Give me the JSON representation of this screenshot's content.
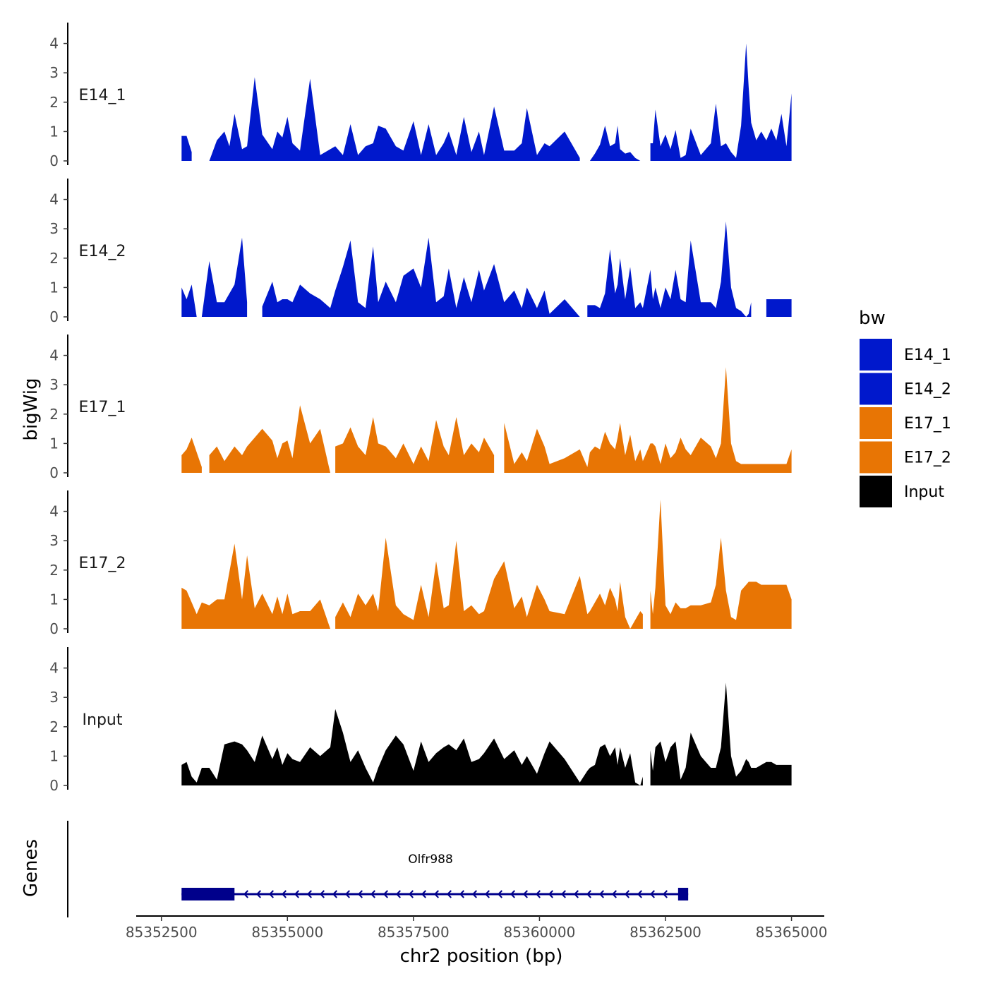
{
  "chart_data": {
    "type": "area",
    "title": "",
    "xlabel": "chr2 position (bp)",
    "ylabel": "bigWig",
    "genes_label": "Genes",
    "xlim": [
      85352000,
      85365650
    ],
    "x_ticks": [
      85352500,
      85355000,
      85357500,
      85360000,
      85362500,
      85365000
    ],
    "x_tick_labels": [
      "85352500",
      "85355000",
      "85357500",
      "85360000",
      "85362500",
      "85365000"
    ],
    "ylim": [
      0,
      4.5
    ],
    "y_ticks": [
      0,
      1,
      2,
      3,
      4
    ],
    "y_tick_labels": [
      "0",
      "1",
      "2",
      "3",
      "4"
    ],
    "legend": {
      "title": "bw",
      "position": "right",
      "entries": [
        {
          "label": "E14_1",
          "color": "#0018CC"
        },
        {
          "label": "E14_2",
          "color": "#0018CC"
        },
        {
          "label": "E17_1",
          "color": "#E87504"
        },
        {
          "label": "E17_2",
          "color": "#E87504"
        },
        {
          "label": "Input",
          "color": "#000000"
        }
      ]
    },
    "series": [
      {
        "name": "E14_1",
        "color": "#0018CC",
        "x": [
          85352900,
          85353000,
          85353100,
          85353250,
          85353450,
          85353600,
          85353750,
          85353850,
          85353950,
          85354100,
          85354200,
          85354350,
          85354500,
          85354700,
          85354800,
          85354900,
          85355000,
          85355100,
          85355250,
          85355450,
          85355650,
          85355850,
          85355950,
          85356100,
          85356250,
          85356400,
          85356550,
          85356700,
          85356800,
          85356950,
          85357150,
          85357300,
          85357500,
          85357650,
          85357800,
          85357950,
          85358100,
          85358200,
          85358350,
          85358500,
          85358650,
          85358800,
          85358900,
          85359100,
          85359300,
          85359500,
          85359650,
          85359750,
          85359950,
          85360100,
          85360200,
          85360500,
          85360800,
          85360950,
          85361000,
          85361100,
          85361200,
          85361300,
          85361400,
          85361500,
          85361550,
          85361600,
          85361700,
          85361800,
          85361900,
          85362000,
          85362050,
          85362200,
          85362250,
          85362300,
          85362400,
          85362500,
          85362600,
          85362700,
          85362800,
          85362900,
          85363000,
          85363200,
          85363400,
          85363500,
          85363600,
          85363700,
          85363800,
          85363900,
          85364000,
          85364100,
          85364150,
          85364200,
          85364300,
          85364400,
          85364500,
          85364600,
          85364700,
          85364800,
          85364900,
          85365000
        ],
        "values": [
          0.85,
          0.85,
          0.3,
          0,
          0,
          0.7,
          1.0,
          0.5,
          1.6,
          0.4,
          0.5,
          2.85,
          0.9,
          0.4,
          1.0,
          0.8,
          1.5,
          0.6,
          0.35,
          2.8,
          0.2,
          0.4,
          0.5,
          0.2,
          1.25,
          0.2,
          0.5,
          0.6,
          1.2,
          1.1,
          0.5,
          0.35,
          1.35,
          0.2,
          1.25,
          0.2,
          0.6,
          1.0,
          0.2,
          1.5,
          0.3,
          1.0,
          0.2,
          1.85,
          0.35,
          0.35,
          0.6,
          1.8,
          0.2,
          0.6,
          0.5,
          1.0,
          0.1,
          0,
          0,
          0.25,
          0.55,
          1.2,
          0.5,
          0.6,
          1.2,
          0.4,
          0.25,
          0.3,
          0.1,
          0,
          0,
          0.6,
          0.6,
          1.75,
          0.5,
          0.9,
          0.4,
          1.05,
          0.1,
          0.2,
          1.1,
          0.2,
          0.6,
          1.95,
          0.5,
          0.6,
          0.3,
          0.1,
          1.2,
          4.0,
          2.5,
          1.3,
          0.7,
          1.0,
          0.7,
          1.1,
          0.7,
          1.6,
          0.5,
          2.3
        ]
      },
      {
        "name": "E14_2",
        "color": "#0018CC",
        "x": [
          85352900,
          85353000,
          85353100,
          85353200,
          85353300,
          85353450,
          85353600,
          85353750,
          85353950,
          85354100,
          85354200,
          85354350,
          85354500,
          85354700,
          85354800,
          85354900,
          85355000,
          85355100,
          85355250,
          85355450,
          85355650,
          85355850,
          85355950,
          85356100,
          85356250,
          85356400,
          85356550,
          85356700,
          85356800,
          85356950,
          85357150,
          85357300,
          85357500,
          85357650,
          85357800,
          85357950,
          85358100,
          85358200,
          85358350,
          85358500,
          85358650,
          85358800,
          85358900,
          85359100,
          85359300,
          85359500,
          85359650,
          85359750,
          85359950,
          85360100,
          85360200,
          85360500,
          85360800,
          85360950,
          85361000,
          85361100,
          85361200,
          85361300,
          85361400,
          85361500,
          85361550,
          85361600,
          85361700,
          85361800,
          85361900,
          85362000,
          85362050,
          85362200,
          85362250,
          85362300,
          85362400,
          85362500,
          85362600,
          85362700,
          85362800,
          85362900,
          85363000,
          85363200,
          85363400,
          85363500,
          85363600,
          85363700,
          85363800,
          85363900,
          85364000,
          85364100,
          85364150,
          85364200,
          85364300,
          85364400,
          85364500,
          85364600,
          85364700,
          85364800,
          85364900,
          85365000
        ],
        "values": [
          1.0,
          0.6,
          1.1,
          0,
          0,
          1.9,
          0.5,
          0.5,
          1.1,
          2.7,
          0.5,
          0,
          0.35,
          1.2,
          0.5,
          0.6,
          0.6,
          0.5,
          1.1,
          0.8,
          0.6,
          0.3,
          0.9,
          1.7,
          2.6,
          0.5,
          0.3,
          2.4,
          0.5,
          1.2,
          0.5,
          1.4,
          1.65,
          1.0,
          2.7,
          0.5,
          0.7,
          1.65,
          0.3,
          1.35,
          0.5,
          1.6,
          0.9,
          1.8,
          0.5,
          0.9,
          0.3,
          1.0,
          0.3,
          0.9,
          0.1,
          0.6,
          0,
          0.4,
          0.4,
          0.4,
          0.3,
          0.8,
          2.3,
          0.8,
          1.1,
          2.0,
          0.6,
          1.7,
          0.3,
          0.5,
          0.3,
          1.6,
          0.6,
          1.0,
          0.3,
          1.0,
          0.6,
          1.6,
          0.6,
          0.5,
          2.6,
          0.5,
          0.5,
          0.3,
          1.2,
          3.25,
          1.0,
          0.3,
          0.2,
          0,
          0.1,
          0.5,
          0.6,
          0.6,
          0.6,
          0.6,
          0.6,
          0.6,
          0.6,
          0.6
        ]
      },
      {
        "name": "E17_1",
        "color": "#E87504",
        "x": [
          85352900,
          85353000,
          85353100,
          85353200,
          85353300,
          85353450,
          85353600,
          85353750,
          85353950,
          85354100,
          85354200,
          85354350,
          85354500,
          85354700,
          85354800,
          85354900,
          85355000,
          85355100,
          85355250,
          85355450,
          85355650,
          85355850,
          85355950,
          85356100,
          85356250,
          85356400,
          85356550,
          85356700,
          85356800,
          85356950,
          85357150,
          85357300,
          85357500,
          85357650,
          85357800,
          85357950,
          85358100,
          85358200,
          85358350,
          85358500,
          85358650,
          85358800,
          85358900,
          85359100,
          85359300,
          85359500,
          85359650,
          85359750,
          85359950,
          85360100,
          85360200,
          85360500,
          85360800,
          85360950,
          85361000,
          85361100,
          85361200,
          85361300,
          85361400,
          85361500,
          85361550,
          85361600,
          85361700,
          85361800,
          85361900,
          85362000,
          85362050,
          85362200,
          85362250,
          85362300,
          85362400,
          85362500,
          85362600,
          85362700,
          85362800,
          85362900,
          85363000,
          85363200,
          85363400,
          85363500,
          85363600,
          85363700,
          85363800,
          85363900,
          85364000,
          85364100,
          85364150,
          85364200,
          85364300,
          85364400,
          85364500,
          85364600,
          85364700,
          85364800,
          85364900,
          85365000
        ],
        "values": [
          0.6,
          0.8,
          1.2,
          0.7,
          0.2,
          0.6,
          0.9,
          0.4,
          0.9,
          0.6,
          0.9,
          1.2,
          1.5,
          1.1,
          0.5,
          1.0,
          1.1,
          0.5,
          2.3,
          1.0,
          1.5,
          0,
          0.9,
          1.0,
          1.55,
          0.9,
          0.6,
          1.9,
          1.0,
          0.9,
          0.5,
          1.0,
          0.3,
          0.9,
          0.4,
          1.8,
          0.9,
          0.6,
          1.9,
          0.6,
          1.0,
          0.7,
          1.2,
          0.6,
          1.7,
          0.3,
          0.7,
          0.4,
          1.5,
          0.9,
          0.3,
          0.5,
          0.8,
          0.2,
          0.7,
          0.9,
          0.8,
          1.4,
          1.0,
          0.8,
          1.2,
          1.7,
          0.6,
          1.3,
          0.4,
          0.8,
          0.4,
          1.0,
          1.0,
          0.9,
          0.3,
          1.0,
          0.5,
          0.7,
          1.2,
          0.8,
          0.6,
          1.2,
          0.9,
          0.5,
          1.0,
          3.6,
          1.0,
          0.4,
          0.3,
          0.3,
          0.3,
          0.3,
          0.3,
          0.3,
          0.3,
          0.3,
          0.3,
          0.3,
          0.3,
          0.8
        ]
      },
      {
        "name": "E17_2",
        "color": "#E87504",
        "x": [
          85352900,
          85353000,
          85353100,
          85353200,
          85353300,
          85353450,
          85353600,
          85353750,
          85353950,
          85354100,
          85354200,
          85354350,
          85354500,
          85354700,
          85354800,
          85354900,
          85355000,
          85355100,
          85355250,
          85355450,
          85355650,
          85355850,
          85355950,
          85356100,
          85356250,
          85356400,
          85356550,
          85356700,
          85356800,
          85356950,
          85357150,
          85357300,
          85357500,
          85357650,
          85357800,
          85357950,
          85358100,
          85358200,
          85358350,
          85358500,
          85358650,
          85358800,
          85358900,
          85359100,
          85359300,
          85359500,
          85359650,
          85359750,
          85359950,
          85360100,
          85360200,
          85360500,
          85360800,
          85360950,
          85361000,
          85361100,
          85361200,
          85361300,
          85361400,
          85361500,
          85361550,
          85361600,
          85361700,
          85361800,
          85361900,
          85362000,
          85362050,
          85362200,
          85362250,
          85362300,
          85362400,
          85362500,
          85362600,
          85362700,
          85362800,
          85362900,
          85363000,
          85363200,
          85363400,
          85363500,
          85363600,
          85363700,
          85363800,
          85363900,
          85364000,
          85364100,
          85364150,
          85364200,
          85364300,
          85364400,
          85364500,
          85364600,
          85364700,
          85364800,
          85364900,
          85365000
        ],
        "values": [
          1.4,
          1.3,
          0.9,
          0.5,
          0.9,
          0.8,
          1.0,
          1.0,
          2.9,
          1.0,
          2.5,
          0.7,
          1.2,
          0.5,
          1.1,
          0.5,
          1.2,
          0.5,
          0.6,
          0.6,
          1.0,
          0,
          0.4,
          0.9,
          0.4,
          1.2,
          0.8,
          1.2,
          0.6,
          3.1,
          0.8,
          0.5,
          0.3,
          1.5,
          0.4,
          2.3,
          0.7,
          0.8,
          3.0,
          0.6,
          0.8,
          0.5,
          0.6,
          1.7,
          2.3,
          0.7,
          1.1,
          0.4,
          1.5,
          1.0,
          0.6,
          0.5,
          1.8,
          0.5,
          0.6,
          0.9,
          1.2,
          0.8,
          1.4,
          1.0,
          0.6,
          1.6,
          0.4,
          0,
          0.3,
          0.6,
          0.5,
          1.3,
          0.5,
          1.4,
          4.4,
          0.8,
          0.5,
          0.9,
          0.7,
          0.7,
          0.8,
          0.8,
          0.9,
          1.5,
          3.1,
          1.3,
          0.4,
          0.3,
          1.3,
          1.5,
          1.6,
          1.6,
          1.6,
          1.5,
          1.5,
          1.5,
          1.5,
          1.5,
          1.5,
          1.0
        ]
      },
      {
        "name": "Input",
        "color": "#000000",
        "x": [
          85352900,
          85353000,
          85353100,
          85353200,
          85353300,
          85353450,
          85353600,
          85353750,
          85353950,
          85354100,
          85354200,
          85354350,
          85354500,
          85354700,
          85354800,
          85354900,
          85355000,
          85355100,
          85355250,
          85355450,
          85355650,
          85355850,
          85355950,
          85356100,
          85356250,
          85356400,
          85356550,
          85356700,
          85356800,
          85356950,
          85357150,
          85357300,
          85357500,
          85357650,
          85357800,
          85357950,
          85358100,
          85358200,
          85358350,
          85358500,
          85358650,
          85358800,
          85358900,
          85359100,
          85359300,
          85359500,
          85359650,
          85359750,
          85359950,
          85360100,
          85360200,
          85360500,
          85360800,
          85360950,
          85361000,
          85361100,
          85361200,
          85361300,
          85361400,
          85361500,
          85361550,
          85361600,
          85361700,
          85361800,
          85361900,
          85362000,
          85362050,
          85362200,
          85362250,
          85362300,
          85362400,
          85362500,
          85362600,
          85362700,
          85362800,
          85362900,
          85363000,
          85363200,
          85363400,
          85363500,
          85363600,
          85363700,
          85363800,
          85363900,
          85364000,
          85364100,
          85364150,
          85364200,
          85364300,
          85364400,
          85364500,
          85364600,
          85364700,
          85364800,
          85364900,
          85365000
        ],
        "values": [
          0.7,
          0.8,
          0.3,
          0.1,
          0.6,
          0.6,
          0.2,
          1.4,
          1.5,
          1.4,
          1.2,
          0.8,
          1.7,
          0.9,
          1.3,
          0.7,
          1.1,
          0.9,
          0.8,
          1.3,
          1.0,
          1.3,
          2.6,
          1.8,
          0.8,
          1.2,
          0.6,
          0.1,
          0.6,
          1.2,
          1.7,
          1.4,
          0.5,
          1.5,
          0.8,
          1.1,
          1.3,
          1.4,
          1.2,
          1.6,
          0.8,
          0.9,
          1.1,
          1.6,
          0.9,
          1.2,
          0.7,
          1.0,
          0.4,
          1.1,
          1.5,
          0.9,
          0.1,
          0.5,
          0.6,
          0.7,
          1.3,
          1.4,
          1.0,
          1.3,
          0.7,
          1.3,
          0.6,
          1.1,
          0.1,
          0,
          0.3,
          1.2,
          0.5,
          1.3,
          1.5,
          0.8,
          1.3,
          1.5,
          0.2,
          0.6,
          1.8,
          1.0,
          0.6,
          0.6,
          1.3,
          3.5,
          1.0,
          0.3,
          0.5,
          0.9,
          0.8,
          0.6,
          0.6,
          0.7,
          0.8,
          0.8,
          0.7,
          0.7,
          0.7,
          0.7
        ]
      }
    ],
    "gaps": {
      "E14_1": [
        [
          85353100,
          85353450
        ],
        [
          85360800,
          85360950
        ],
        [
          85362050,
          85362200
        ]
      ],
      "E14_2": [
        [
          85354200,
          85354500
        ],
        [
          85360800,
          85360950
        ],
        [
          85364200,
          85364450
        ]
      ],
      "E17_1": [
        [
          85353300,
          85353450
        ],
        [
          85355850,
          85355950
        ],
        [
          85359100,
          85359300
        ]
      ],
      "E17_2": [
        [
          85355850,
          85355950
        ],
        [
          85362050,
          85362200
        ]
      ],
      "Input": [
        [
          85362050,
          85362200
        ]
      ]
    },
    "gene": {
      "name": "Olfr988",
      "start": 85352900,
      "end": 85362950,
      "strand": "-",
      "color": "#00008B",
      "exons": [
        [
          85352900,
          85353950
        ],
        [
          85362750,
          85362950
        ]
      ]
    }
  }
}
